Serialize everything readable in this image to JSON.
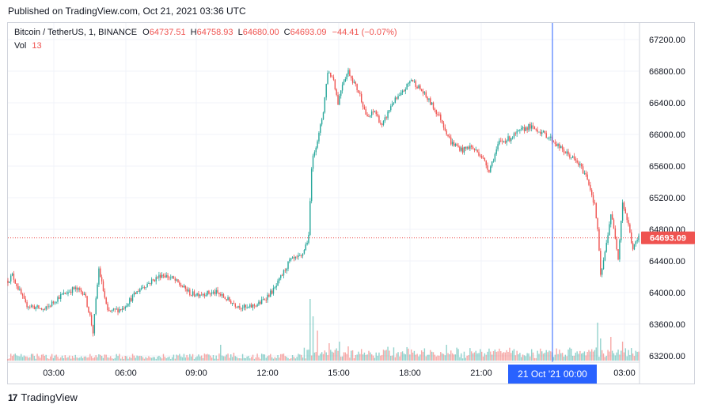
{
  "header": {
    "published": "Published on TradingView.com, Oct 21, 2021 03:36 UTC"
  },
  "legend": {
    "symbol": "Bitcoin / TetherUS, 1, BINANCE",
    "open_label": "O",
    "open": "64737.51",
    "high_label": "H",
    "high": "64758.93",
    "low_label": "L",
    "low": "64680.00",
    "close_label": "C",
    "close": "64693.09",
    "change": "−44.41 (−0.07%)",
    "vol_label": "Vol",
    "vol": "13"
  },
  "footer": {
    "brand": "TradingView"
  },
  "colors": {
    "up": "#26a69a",
    "down": "#ef5350",
    "crosshair": "#2962ff",
    "grid": "#f0f3fa"
  },
  "chart_data": {
    "type": "candlestick",
    "title": "Bitcoin / TetherUS, 1, BINANCE",
    "y_ticks": [
      "67200.00",
      "66800.00",
      "66400.00",
      "66000.00",
      "65600.00",
      "65200.00",
      "64800.00",
      "64400.00",
      "64000.00",
      "63600.00",
      "63200.00"
    ],
    "x_ticks": [
      "03:00",
      "06:00",
      "09:00",
      "12:00",
      "15:00",
      "18:00",
      "21:00",
      "03:00"
    ],
    "ylim": [
      63150,
      67400
    ],
    "current_price": 64693.09,
    "current_price_label": "64693.09",
    "crosshair_label": "21 Oct '21   00:00",
    "path_price_knots": [
      [
        0,
        64150
      ],
      [
        3,
        64220
      ],
      [
        12,
        63850
      ],
      [
        25,
        63780
      ],
      [
        35,
        63950
      ],
      [
        45,
        64050
      ],
      [
        52,
        64000
      ],
      [
        56,
        63700
      ],
      [
        58,
        63500
      ],
      [
        62,
        64300
      ],
      [
        68,
        63750
      ],
      [
        78,
        63800
      ],
      [
        90,
        64050
      ],
      [
        105,
        64230
      ],
      [
        112,
        64180
      ],
      [
        125,
        63980
      ],
      [
        142,
        64000
      ],
      [
        155,
        63850
      ],
      [
        163,
        63800
      ],
      [
        172,
        63870
      ],
      [
        182,
        64050
      ],
      [
        192,
        64400
      ],
      [
        200,
        64450
      ],
      [
        205,
        64700
      ],
      [
        207,
        65600
      ],
      [
        209,
        65800
      ],
      [
        212,
        66000
      ],
      [
        215,
        66300
      ],
      [
        218,
        66800
      ],
      [
        222,
        66700
      ],
      [
        225,
        66400
      ],
      [
        228,
        66650
      ],
      [
        232,
        66800
      ],
      [
        236,
        66650
      ],
      [
        240,
        66500
      ],
      [
        245,
        66200
      ],
      [
        250,
        66300
      ],
      [
        255,
        66100
      ],
      [
        262,
        66400
      ],
      [
        268,
        66500
      ],
      [
        275,
        66700
      ],
      [
        282,
        66550
      ],
      [
        288,
        66400
      ],
      [
        295,
        66200
      ],
      [
        302,
        65900
      ],
      [
        310,
        65800
      ],
      [
        315,
        65850
      ],
      [
        322,
        65750
      ],
      [
        328,
        65550
      ],
      [
        335,
        65900
      ],
      [
        342,
        65950
      ],
      [
        350,
        66050
      ],
      [
        355,
        66100
      ],
      [
        362,
        66050
      ],
      [
        370,
        65950
      ],
      [
        378,
        65800
      ],
      [
        385,
        65700
      ],
      [
        390,
        65600
      ],
      [
        395,
        65450
      ],
      [
        400,
        65100
      ],
      [
        402,
        64800
      ],
      [
        404,
        64200
      ],
      [
        407,
        64500
      ],
      [
        411,
        65000
      ],
      [
        414,
        64700
      ],
      [
        416,
        64450
      ],
      [
        419,
        65150
      ],
      [
        423,
        64850
      ],
      [
        426,
        64550
      ],
      [
        430,
        64700
      ]
    ],
    "volume_spikes": [
      [
        62,
        8
      ],
      [
        145,
        20
      ],
      [
        154,
        10
      ],
      [
        206,
        78
      ],
      [
        208,
        56
      ],
      [
        211,
        38
      ],
      [
        219,
        22
      ],
      [
        226,
        24
      ],
      [
        232,
        18
      ],
      [
        299,
        20
      ],
      [
        332,
        14
      ],
      [
        402,
        48
      ],
      [
        404,
        28
      ],
      [
        411,
        30
      ],
      [
        419,
        24
      ]
    ],
    "bars": 431
  }
}
